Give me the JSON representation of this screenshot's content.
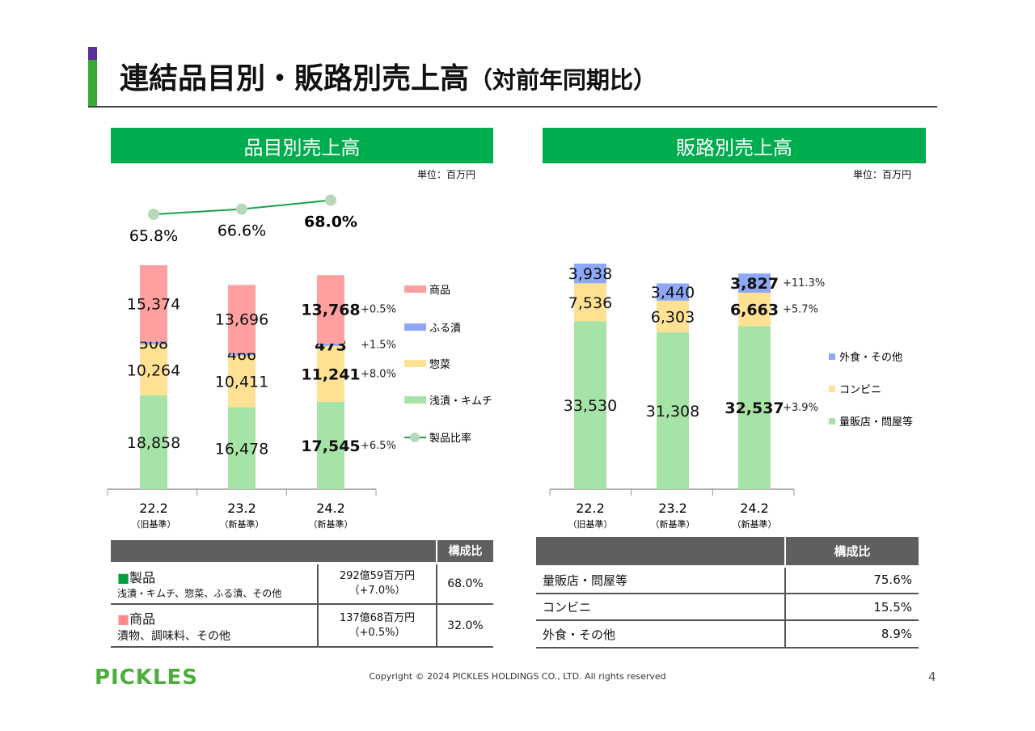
{
  "header": {
    "title": "連結品目別・販路別売上高",
    "title_suffix": "（対前年同期比）"
  },
  "sections": {
    "left": "品目別売上高",
    "right": "販路別売上高",
    "unit": "単位：百万円"
  },
  "colors": {
    "green_header": "#00ad4e",
    "shohin": "#ff9f9f",
    "furuzuke": "#8fa8f5",
    "sozai": "#ffe194",
    "asazuke": "#a6e3a6",
    "line": "#17a34a",
    "marker": "#b9d7b9"
  },
  "chart_data": [
    {
      "type": "bar",
      "stacked": true,
      "title": "品目別売上高",
      "unit": "単位：百万円",
      "categories": [
        "22.2",
        "23.2",
        "24.2"
      ],
      "category_sub": [
        "（旧基準）",
        "（新基準）",
        "（新基準）"
      ],
      "series": [
        {
          "name": "浅漬・キムチ",
          "values": [
            18858,
            16478,
            17545
          ],
          "color": "#a6e3a6",
          "yoy": "+6.5%"
        },
        {
          "name": "惣菜",
          "values": [
            10264,
            10411,
            11241
          ],
          "color": "#ffe194",
          "yoy": "+8.0%"
        },
        {
          "name": "ふる漬",
          "values": [
            508,
            466,
            473
          ],
          "color": "#8fa8f5",
          "yoy": "+1.5%"
        },
        {
          "name": "商品",
          "values": [
            15374,
            13696,
            13768
          ],
          "color": "#ff9f9f",
          "yoy": "+0.5%"
        }
      ],
      "line": {
        "name": "製品比率",
        "values": [
          65.8,
          66.6,
          68.0
        ],
        "labels": [
          "65.8%",
          "66.6%",
          "68.0%"
        ]
      },
      "legend": [
        "商品",
        "ふる漬",
        "惣菜",
        "浅漬・キムチ",
        "製品比率"
      ],
      "legend_position": "right"
    },
    {
      "type": "bar",
      "stacked": true,
      "title": "販路別売上高",
      "unit": "単位：百万円",
      "categories": [
        "22.2",
        "23.2",
        "24.2"
      ],
      "category_sub": [
        "（旧基準）",
        "（新基準）",
        "（新基準）"
      ],
      "series": [
        {
          "name": "量販店・問屋等",
          "values": [
            33530,
            31308,
            32537
          ],
          "color": "#a6e3a6",
          "yoy": "+3.9%"
        },
        {
          "name": "コンビニ",
          "values": [
            7536,
            6303,
            6663
          ],
          "color": "#ffe194",
          "yoy": "+5.7%"
        },
        {
          "name": "外食・その他",
          "values": [
            3938,
            3440,
            3827
          ],
          "color": "#8fa8f5",
          "yoy": "+11.3%"
        }
      ],
      "legend": [
        "外食・その他",
        "コンビニ",
        "量販店・問屋等"
      ],
      "legend_position": "right"
    }
  ],
  "table_left": {
    "header": "構成比",
    "rows": [
      {
        "name": "製品",
        "desc": "浅漬・キムチ、惣菜、ふる漬、その他",
        "amount": "292億59百万円",
        "change": "（+7.0%）",
        "ratio": "68.0%",
        "color": "#00a040"
      },
      {
        "name": "商品",
        "desc": "漬物、調味料、その他",
        "amount": "137億68百万円",
        "change": "（+0.5%）",
        "ratio": "32.0%",
        "color": "#ff8c8c"
      }
    ]
  },
  "table_right": {
    "header": "構成比",
    "rows": [
      {
        "name": "量販店・問屋等",
        "ratio": "75.6%"
      },
      {
        "name": "コンビニ",
        "ratio": "15.5%"
      },
      {
        "name": "外食・その他",
        "ratio": "8.9%"
      }
    ]
  },
  "footer": {
    "logo": "PICKLES",
    "copyright": "Copyright © 2024 PICKLES HOLDINGS CO., LTD. All rights reserved",
    "page": "4"
  }
}
